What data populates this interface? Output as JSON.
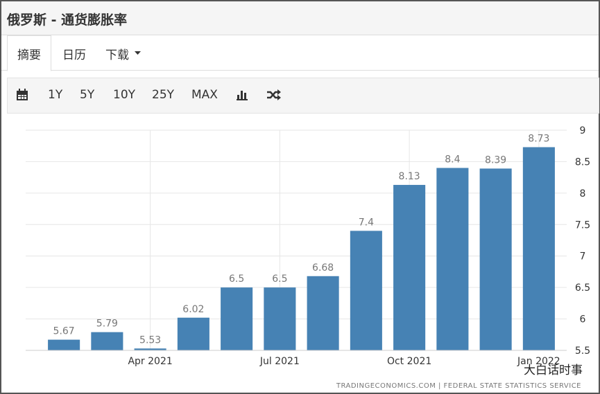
{
  "header": {
    "title": "俄罗斯 - 通货膨胀率"
  },
  "tabs": [
    "摘要",
    "日历",
    "下载"
  ],
  "toolbar": [
    "1Y",
    "5Y",
    "10Y",
    "25Y",
    "MAX"
  ],
  "chart_data": {
    "type": "bar",
    "categories": [
      null,
      null,
      "Apr 2021",
      null,
      null,
      "Jul 2021",
      null,
      null,
      "Oct 2021",
      null,
      null,
      "Jan 2022"
    ],
    "values": [
      5.67,
      5.79,
      5.53,
      6.02,
      6.5,
      6.5,
      6.68,
      7.4,
      8.13,
      8.4,
      8.39,
      8.73
    ],
    "color": "#4682b4",
    "ylim": [
      5.5,
      9
    ],
    "yticks": [
      5.5,
      6,
      6.5,
      7,
      7.5,
      8,
      8.5,
      9
    ],
    "grid": true
  },
  "source": "TRADINGECONOMICS.COM  |  FEDERAL STATE STATISTICS SERVICE",
  "watermark": "大白话时事"
}
